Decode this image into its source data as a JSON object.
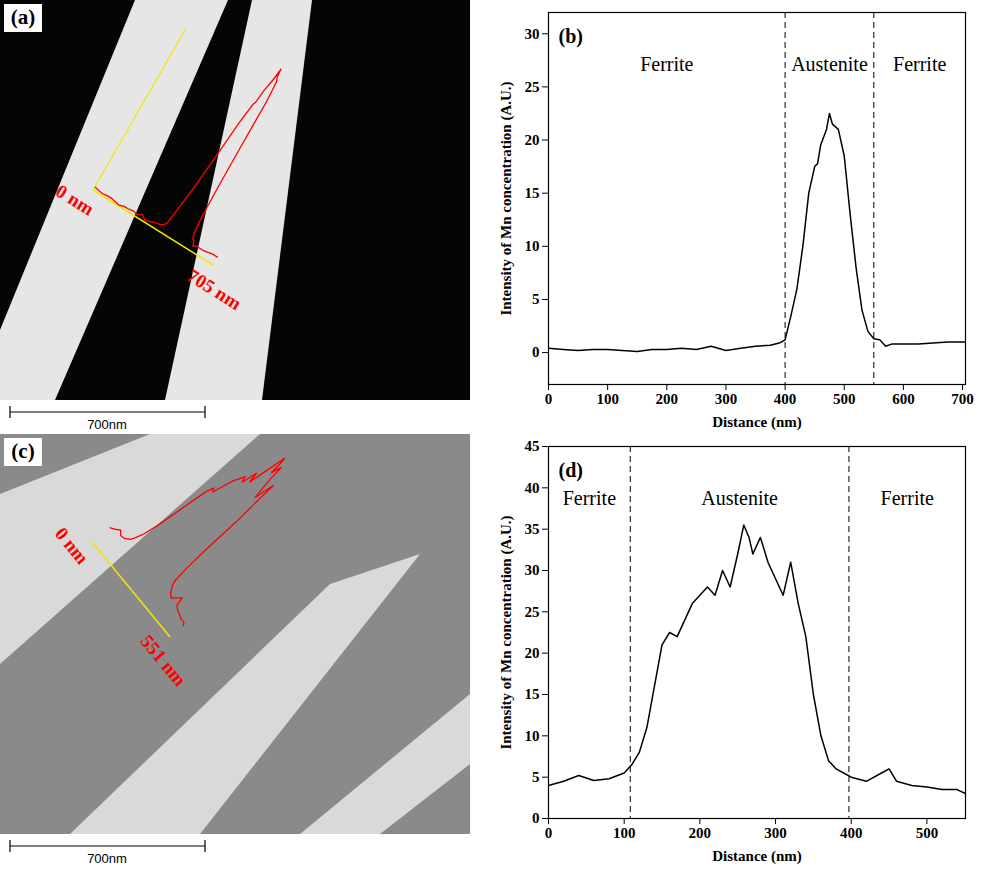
{
  "chart_data": [
    {
      "type": "image",
      "panel": "(a)",
      "scan_labels": [
        "0 nm",
        "705 nm"
      ],
      "scale_bar": "700nm",
      "color": "#ff0000"
    },
    {
      "type": "line",
      "panel": "(b)",
      "xlabel": "Distance (nm)",
      "ylabel": "Intensity of Mn concentration (A.U.)",
      "x": [
        0,
        25,
        50,
        75,
        100,
        125,
        150,
        175,
        200,
        225,
        250,
        275,
        300,
        325,
        350,
        375,
        390,
        400,
        410,
        420,
        430,
        440,
        450,
        455,
        460,
        470,
        475,
        480,
        490,
        500,
        510,
        520,
        530,
        540,
        550,
        560,
        570,
        580,
        600,
        625,
        650,
        675,
        705
      ],
      "values": [
        0.4,
        0.3,
        0.2,
        0.3,
        0.3,
        0.2,
        0.1,
        0.3,
        0.3,
        0.4,
        0.3,
        0.6,
        0.2,
        0.4,
        0.6,
        0.7,
        0.9,
        1.2,
        3.5,
        6,
        10,
        15,
        17.5,
        17.8,
        19.5,
        21,
        22.5,
        21.5,
        21,
        18.5,
        13,
        8,
        4,
        2,
        1.3,
        1.2,
        0.6,
        0.8,
        0.8,
        0.8,
        0.9,
        1.0,
        1.0
      ],
      "color": "#000000",
      "xlim": [
        0,
        705
      ],
      "xticks": [
        0,
        100,
        200,
        300,
        400,
        500,
        600,
        700
      ],
      "ylim": [
        -3,
        32
      ],
      "yticks": [
        0,
        5,
        10,
        15,
        20,
        25,
        30
      ],
      "boundaries": [
        400,
        550
      ],
      "regions": [
        "Ferrite",
        "Austenite",
        "Ferrite"
      ]
    },
    {
      "type": "image",
      "panel": "(c)",
      "scan_labels": [
        "0 nm",
        "551 nm"
      ],
      "scale_bar": "700nm",
      "color": "#ff0000"
    },
    {
      "type": "line",
      "panel": "(d)",
      "xlabel": "Distance (nm)",
      "ylabel": "Intensity of Mn concentration (A.U.)",
      "x": [
        0,
        20,
        40,
        60,
        80,
        100,
        110,
        120,
        130,
        140,
        150,
        160,
        170,
        180,
        190,
        200,
        210,
        220,
        230,
        240,
        250,
        258,
        265,
        270,
        280,
        290,
        300,
        310,
        320,
        330,
        340,
        350,
        360,
        370,
        380,
        390,
        400,
        420,
        440,
        450,
        460,
        480,
        500,
        520,
        540,
        551
      ],
      "values": [
        4,
        4.5,
        5.2,
        4.6,
        4.8,
        5.5,
        6.5,
        8,
        11,
        16,
        21,
        22.5,
        22,
        24,
        26,
        27,
        28,
        27,
        30,
        28,
        32,
        35.5,
        34,
        32,
        34,
        31,
        29,
        27,
        31,
        26,
        22,
        15,
        10,
        7,
        6,
        5.5,
        5,
        4.5,
        5.5,
        6,
        4.5,
        4,
        3.8,
        3.5,
        3.5,
        3
      ],
      "color": "#000000",
      "xlim": [
        0,
        551
      ],
      "xticks": [
        0,
        100,
        200,
        300,
        400,
        500
      ],
      "ylim": [
        0,
        45
      ],
      "yticks": [
        0,
        5,
        10,
        15,
        20,
        25,
        30,
        35,
        40,
        45
      ],
      "boundaries": [
        108,
        397
      ],
      "regions": [
        "Ferrite",
        "Austenite",
        "Ferrite"
      ]
    }
  ]
}
